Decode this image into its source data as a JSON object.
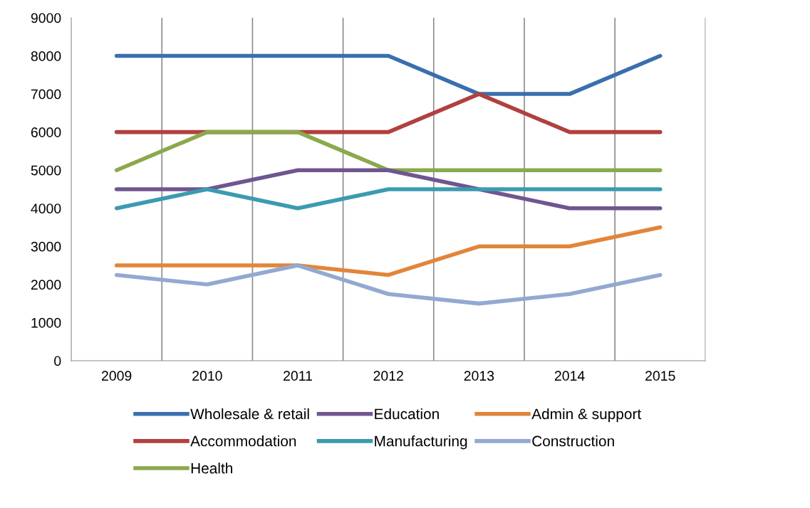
{
  "chart_data": {
    "type": "line",
    "categories": [
      "2009",
      "2010",
      "2011",
      "2012",
      "2013",
      "2014",
      "2015"
    ],
    "series": [
      {
        "name": "Wholesale & retail",
        "color": "#3a6fae",
        "values": [
          8000,
          8000,
          8000,
          8000,
          7000,
          7000,
          8000
        ]
      },
      {
        "name": "Accommodation",
        "color": "#b0413e",
        "values": [
          6000,
          6000,
          6000,
          6000,
          7000,
          6000,
          6000
        ]
      },
      {
        "name": "Health",
        "color": "#8aa94c",
        "values": [
          5000,
          6000,
          6000,
          5000,
          5000,
          5000,
          5000
        ]
      },
      {
        "name": "Education",
        "color": "#6f568f",
        "values": [
          4500,
          4500,
          5000,
          5000,
          4500,
          4000,
          4000
        ]
      },
      {
        "name": "Manufacturing",
        "color": "#3b9bb0",
        "values": [
          4000,
          4500,
          4000,
          4500,
          4500,
          4500,
          4500
        ]
      },
      {
        "name": "Admin & support",
        "color": "#e2853a",
        "values": [
          2500,
          2500,
          2500,
          2250,
          3000,
          3000,
          3500
        ]
      },
      {
        "name": "Construction",
        "color": "#93a9d0",
        "values": [
          2250,
          2000,
          2500,
          1750,
          1500,
          1750,
          2250
        ]
      }
    ],
    "ylim": [
      0,
      9000
    ],
    "yticks": [
      0,
      1000,
      2000,
      3000,
      4000,
      5000,
      6000,
      7000,
      8000,
      9000
    ],
    "grid": "x",
    "legend": "bottom",
    "marker": "none",
    "line_style": "solid"
  }
}
